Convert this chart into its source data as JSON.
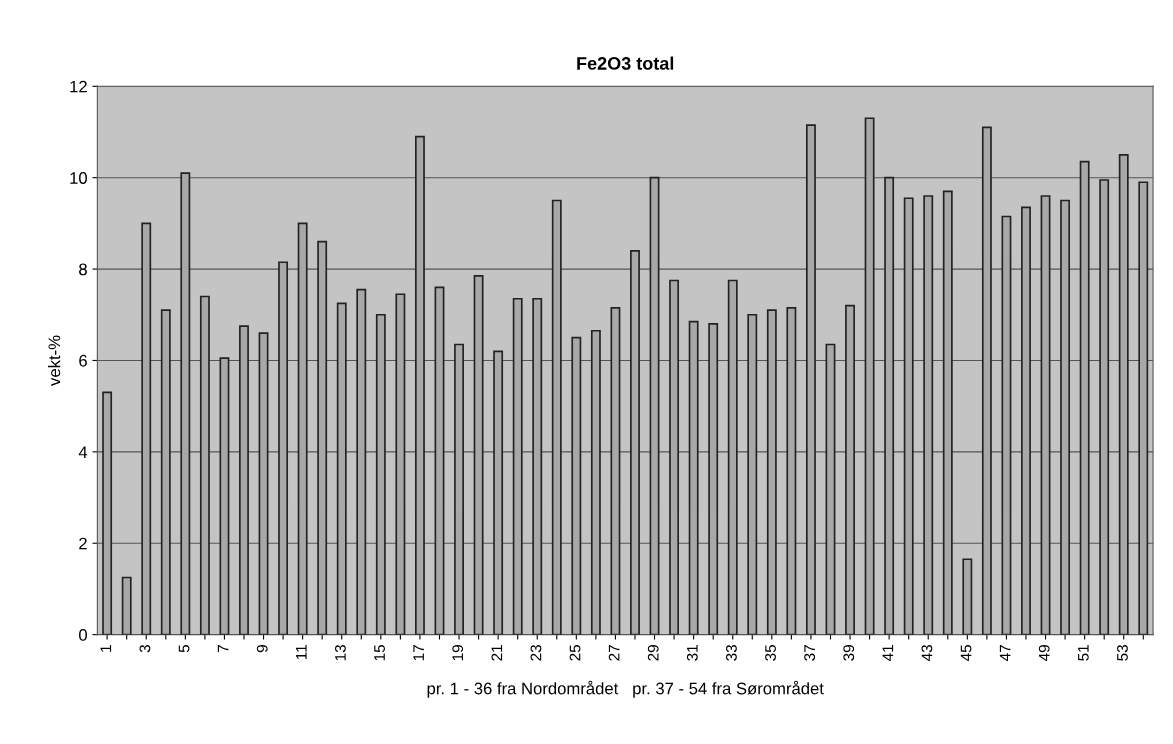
{
  "chart_data": {
    "type": "bar",
    "title": "Fe2O3 total",
    "xlabel": "pr. 1 - 36 fra Nordområdet   pr. 37 - 54 fra Sørområdet",
    "ylabel": "vekt-%",
    "categories": [
      "1",
      null,
      "3",
      null,
      "5",
      null,
      "7",
      null,
      "9",
      null,
      "11",
      null,
      "13",
      null,
      "15",
      null,
      "17",
      null,
      "19",
      null,
      "21",
      null,
      "23",
      null,
      "25",
      null,
      "27",
      null,
      "29",
      null,
      "31",
      null,
      "33",
      null,
      "35",
      null,
      "37",
      null,
      "39",
      null,
      "41",
      null,
      "43",
      null,
      "45",
      null,
      "47",
      null,
      "49",
      null,
      "51",
      null,
      "53",
      null
    ],
    "values": [
      5.3,
      1.25,
      9.0,
      7.1,
      10.1,
      7.4,
      6.05,
      6.75,
      6.6,
      8.15,
      9.0,
      8.6,
      7.25,
      7.55,
      7.0,
      7.45,
      10.9,
      7.6,
      6.35,
      7.85,
      6.2,
      7.35,
      7.35,
      9.5,
      6.5,
      6.65,
      7.15,
      8.4,
      10.0,
      7.75,
      6.85,
      6.8,
      7.75,
      7.0,
      7.1,
      7.15,
      11.15,
      6.35,
      7.2,
      11.3,
      10.0,
      9.55,
      9.6,
      9.7,
      1.65,
      11.1,
      9.15,
      9.35,
      9.6,
      9.5,
      10.35,
      9.95,
      10.5,
      9.9
    ],
    "color": "#a8a8a8",
    "ylim": [
      0,
      12
    ],
    "yticks": [
      0,
      2,
      4,
      6,
      8,
      10,
      12
    ],
    "grid": "y",
    "legend": false
  }
}
